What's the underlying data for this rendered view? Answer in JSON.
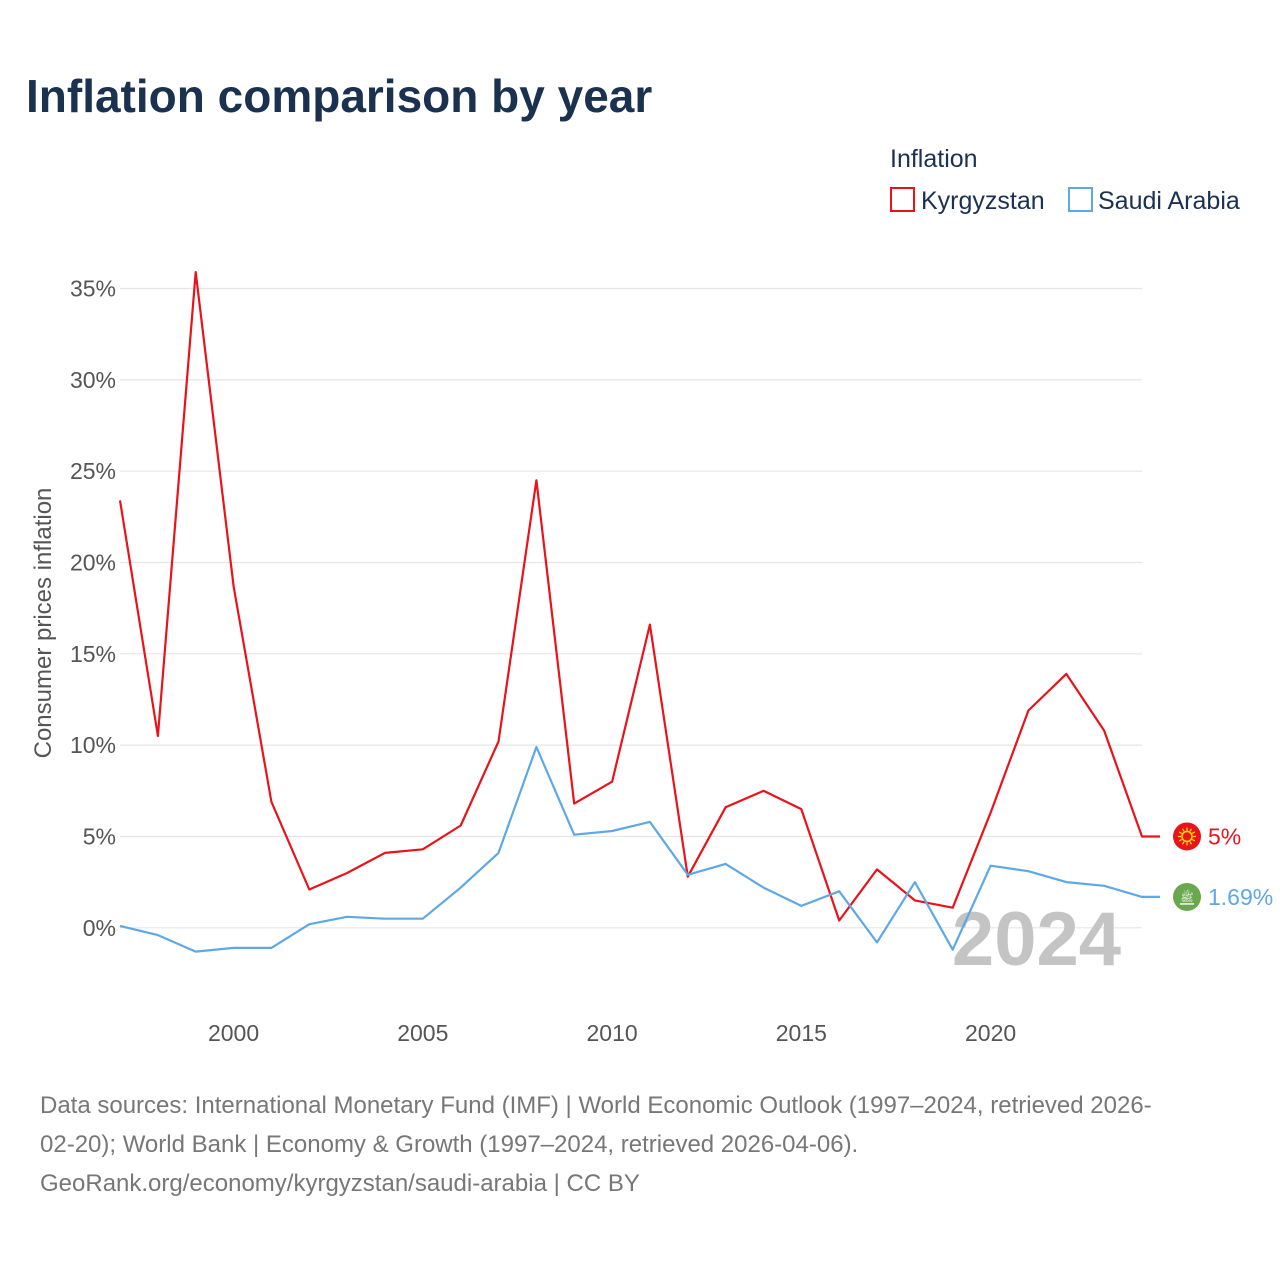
{
  "title": "Inflation comparison by year",
  "legend": {
    "title": "Inflation",
    "items": [
      {
        "label": "Kyrgyzstan",
        "color": "#e8131b"
      },
      {
        "label": "Saudi Arabia",
        "color": "#5ea8e6"
      }
    ]
  },
  "watermark_year": "2024",
  "end_labels": {
    "kyrgyzstan": "5%",
    "saudi_arabia": "1.69%"
  },
  "flags": {
    "kyrgyzstan": {
      "icon": "kyrgyzstan-flag-icon",
      "color": "#e8131b"
    },
    "saudi_arabia": {
      "icon": "saudi-arabia-flag-icon",
      "color": "#6aa84f",
      "glyph": "ﷺ"
    }
  },
  "source": {
    "line1": "Data sources: International Monetary Fund (IMF) | World Economic Outlook (1997–2024, retrieved 2026-",
    "line2": "02-20); World Bank | Economy & Growth (1997–2024, retrieved 2026-04-06).",
    "line3": "GeoRank.org/economy/kyrgyzstan/saudi-arabia | CC BY"
  },
  "chart_data": {
    "type": "line",
    "title": "Inflation comparison by year",
    "xlabel": "",
    "ylabel": "Consumer prices inflation",
    "x": [
      1997,
      1998,
      1999,
      2000,
      2001,
      2002,
      2003,
      2004,
      2005,
      2006,
      2007,
      2008,
      2009,
      2010,
      2011,
      2012,
      2013,
      2014,
      2015,
      2016,
      2017,
      2018,
      2019,
      2020,
      2021,
      2022,
      2023,
      2024
    ],
    "xlim": [
      1997,
      2024
    ],
    "ylim": [
      -4.5,
      37
    ],
    "yticks": [
      0,
      5,
      10,
      15,
      20,
      25,
      30,
      35
    ],
    "ytick_labels": [
      "0%",
      "5%",
      "10%",
      "15%",
      "20%",
      "25%",
      "30%",
      "35%"
    ],
    "xticks": [
      2000,
      2005,
      2010,
      2015,
      2020
    ],
    "xtick_labels": [
      "2000",
      "2005",
      "2010",
      "2015",
      "2020"
    ],
    "legend_position": "top-right",
    "grid": true,
    "series": [
      {
        "name": "Kyrgyzstan",
        "color": "#e8131b",
        "values": [
          23.4,
          10.5,
          35.9,
          18.7,
          6.9,
          2.1,
          3.0,
          4.1,
          4.3,
          5.6,
          10.2,
          24.5,
          6.8,
          8.0,
          16.6,
          2.8,
          6.6,
          7.5,
          6.5,
          0.4,
          3.2,
          1.5,
          1.1,
          6.3,
          11.9,
          13.9,
          10.8,
          5.0
        ]
      },
      {
        "name": "Saudi Arabia",
        "color": "#5ea8e6",
        "values": [
          0.1,
          -0.4,
          -1.3,
          -1.1,
          -1.1,
          0.2,
          0.6,
          0.5,
          0.5,
          2.2,
          4.1,
          9.9,
          5.1,
          5.3,
          5.8,
          2.9,
          3.5,
          2.2,
          1.2,
          2.0,
          -0.8,
          2.5,
          -1.2,
          3.4,
          3.1,
          2.5,
          2.3,
          1.69
        ]
      }
    ]
  }
}
